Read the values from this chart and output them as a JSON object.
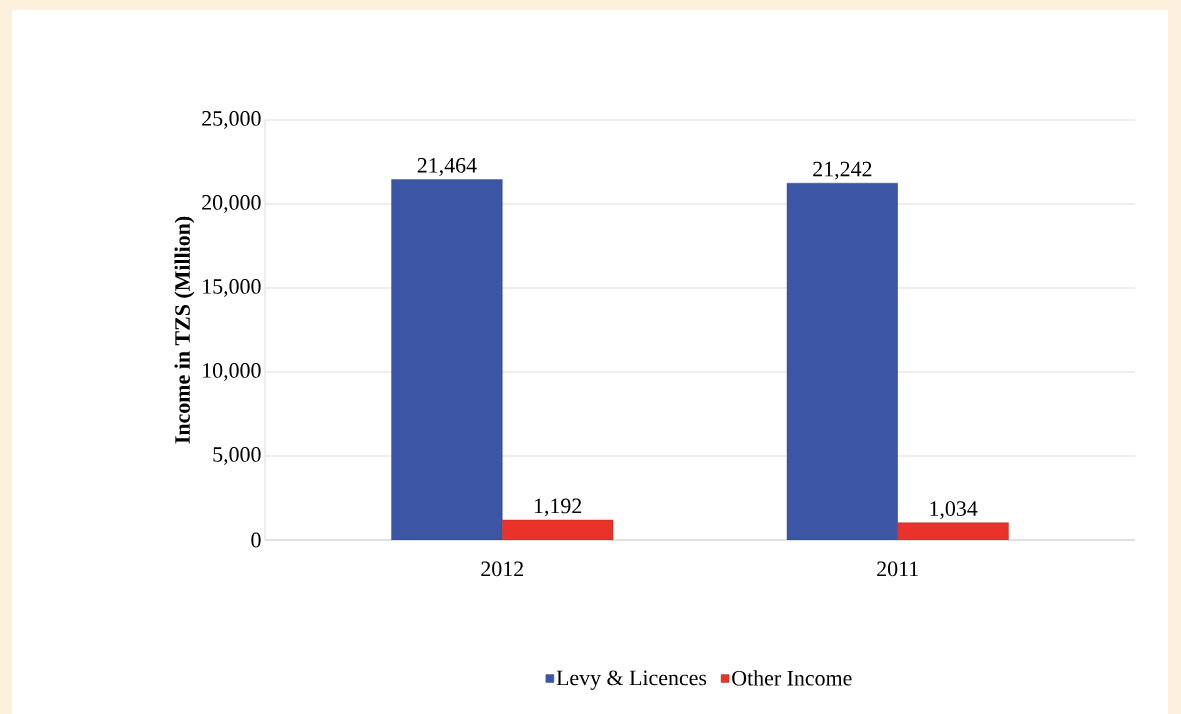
{
  "chart_data": {
    "type": "bar",
    "ylabel": "Income in TZS (Million)",
    "categories": [
      "2012",
      "2011"
    ],
    "series": [
      {
        "name": "Levy & Licences",
        "color": "#3c55a5",
        "values": [
          21464,
          21242
        ],
        "value_labels": [
          "21,464",
          "21,242"
        ]
      },
      {
        "name": "Other Income",
        "color": "#e8322a",
        "values": [
          1192,
          1034
        ],
        "value_labels": [
          "1,192",
          "1,034"
        ]
      }
    ],
    "ylim": [
      0,
      25000
    ],
    "yticks": [
      0,
      {
        "value": 5000,
        "label": "5,000"
      },
      {
        "value": 10000,
        "label": "10,000"
      },
      {
        "value": 15000,
        "label": "15,000"
      },
      {
        "value": 20000,
        "label": "20,000"
      },
      {
        "value": 25000,
        "label": "25,000"
      }
    ],
    "grid": "y",
    "legend": "bottom"
  }
}
